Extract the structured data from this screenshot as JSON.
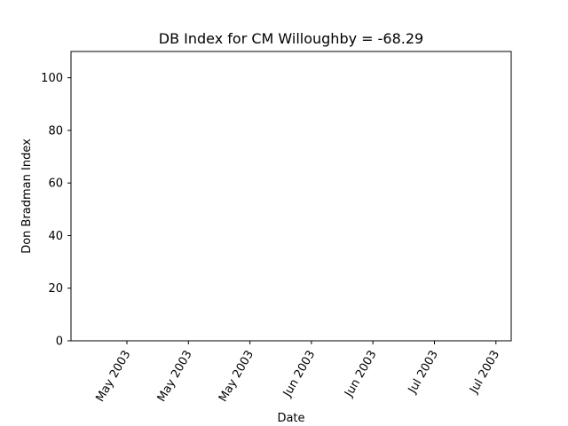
{
  "chart_data": {
    "type": "line",
    "title": "DB Index for CM Willoughby = -68.29",
    "xlabel": "Date",
    "ylabel": "Don Bradman Index",
    "ylim": [
      0,
      110
    ],
    "yticks": [
      0,
      20,
      40,
      60,
      80,
      100
    ],
    "xticks": [
      "May 2003",
      "May 2003",
      "May 2003",
      "Jun 2003",
      "Jun 2003",
      "Jul 2003",
      "Jul 2003"
    ],
    "grid": false,
    "series": [
      {
        "values": []
      }
    ]
  }
}
